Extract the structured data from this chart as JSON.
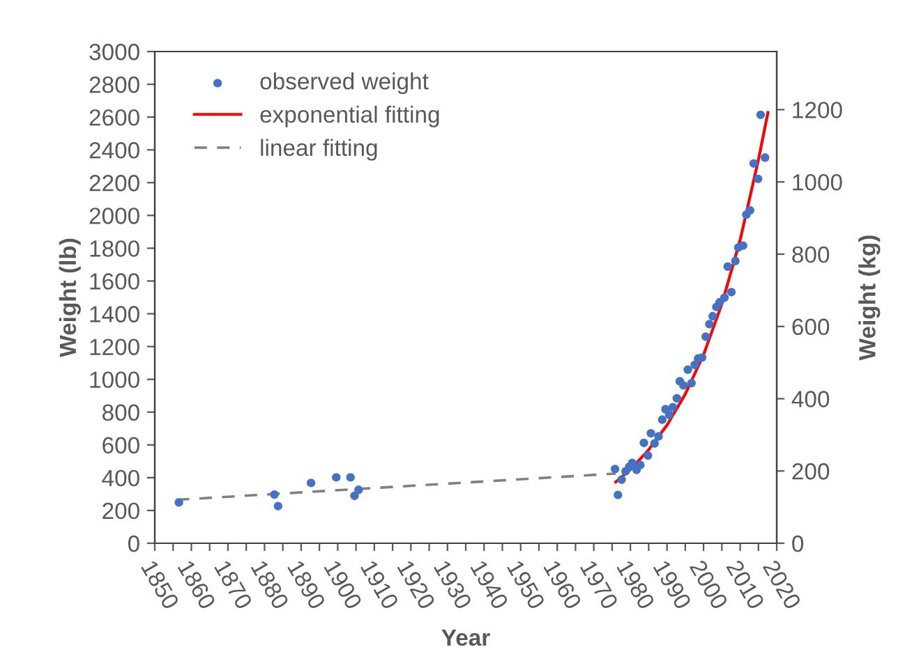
{
  "chart_data": {
    "type": "scatter",
    "xlabel": "Year",
    "ylabel": "Weight (lb)",
    "y2label": "Weight (kg)",
    "series": [
      {
        "name": "observed weight",
        "color": "#4472c4",
        "marker": "circle",
        "x": [
          1856.6,
          1882.7,
          1883.7,
          1892.7,
          1899.6,
          1903.5,
          1904.6,
          1905.7,
          1975.8,
          1976.6,
          1977.6,
          1978.7,
          1979.7,
          1980.5,
          1981.7,
          1982.7,
          1983.7,
          1984.8,
          1985.6,
          1986.6,
          1987.7,
          1988.7,
          1989.6,
          1990.6,
          1991.6,
          1992.7,
          1993.5,
          1994.5,
          1995.7,
          1996.7,
          1997.6,
          1998.5,
          1999.6,
          2000.6,
          2001.6,
          2002.5,
          2003.5,
          2004.4,
          2005.7,
          2006.6,
          2007.6,
          2008.7,
          2009.5,
          2010.8,
          2011.7,
          2012.7,
          2013.7,
          2014.9,
          2015.6,
          2016.8
        ],
        "values": [
          249,
          297,
          227,
          368,
          402,
          402,
          289,
          326,
          453,
          295,
          388,
          439,
          467,
          490,
          448,
          478,
          612,
          535,
          671,
          609,
          652,
          754,
          818,
          784,
          830,
          884,
          988,
          963,
          1059,
          977,
          1088,
          1127,
          1133,
          1260,
          1337,
          1385,
          1442,
          1470,
          1498,
          1688,
          1532,
          1722,
          1804,
          1816,
          2005,
          2031,
          2317,
          2223,
          2614,
          2353
        ]
      },
      {
        "name": "exponential fitting",
        "type": "line",
        "color": "#ff0000",
        "line_style": "solid",
        "x": [
          1976,
          1980,
          1985,
          1990,
          1995,
          2000,
          2005,
          2010,
          2015,
          2017.6
        ],
        "values": [
          374,
          450,
          570,
          720,
          910,
          1150,
          1460,
          1850,
          2340,
          2628
        ]
      },
      {
        "name": "linear fitting",
        "type": "line",
        "color": "#808080",
        "line_style": "dashed",
        "x": [
          1856,
          1976
        ],
        "values": [
          265,
          425
        ]
      }
    ],
    "xlim": [
      1850,
      2020
    ],
    "xticks": [
      1850,
      {
        "value": 1855,
        "label": null
      },
      1860,
      {
        "value": 1865,
        "label": null
      },
      1870,
      {
        "value": 1875,
        "label": null
      },
      1880,
      {
        "value": 1885,
        "label": null
      },
      1890,
      {
        "value": 1895,
        "label": null
      },
      1900,
      {
        "value": 1905,
        "label": null
      },
      1910,
      {
        "value": 1915,
        "label": null
      },
      1920,
      {
        "value": 1925,
        "label": null
      },
      1930,
      {
        "value": 1935,
        "label": null
      },
      1940,
      {
        "value": 1945,
        "label": null
      },
      1950,
      {
        "value": 1955,
        "label": null
      },
      1960,
      {
        "value": 1965,
        "label": null
      },
      1970,
      {
        "value": 1975,
        "label": null
      },
      1980,
      {
        "value": 1985,
        "label": null
      },
      1990,
      {
        "value": 1995,
        "label": null
      },
      2000,
      {
        "value": 2005,
        "label": null
      },
      2010,
      {
        "value": 2015,
        "label": null
      },
      2020
    ],
    "ylim": [
      0,
      3000
    ],
    "yticks": [
      0,
      200,
      400,
      600,
      800,
      1000,
      1200,
      1400,
      1600,
      1800,
      2000,
      2200,
      2400,
      2600,
      2800,
      3000
    ],
    "y2lim": [
      0,
      1360.8
    ],
    "y2ticks": [
      0,
      200,
      400,
      600,
      800,
      1000,
      1200
    ],
    "grid": false,
    "legend": "top left"
  }
}
